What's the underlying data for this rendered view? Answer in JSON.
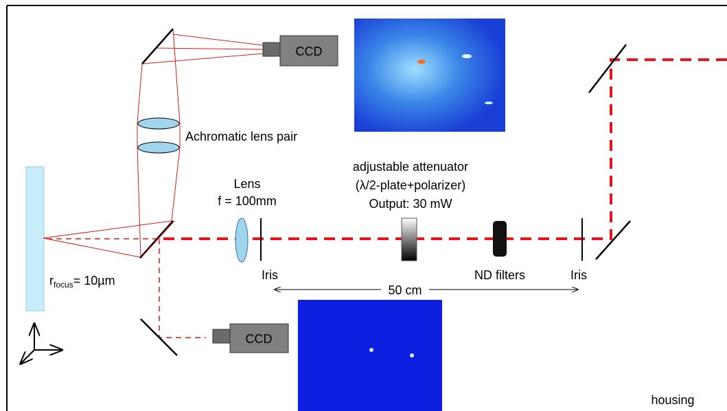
{
  "labels": {
    "ccd_top": "CCD",
    "ccd_bottom": "CCD",
    "lens_pair": "Achromatic lens pair",
    "lens": "Lens",
    "lens_focal": "f = 100mm",
    "attenuator": [
      "adjustable attenuator",
      "(λ/2-plate+polarizer)",
      "Output: 30 mW"
    ],
    "iris_left": "Iris",
    "iris_right": "Iris",
    "distance": "50 cm",
    "nd_filters": "ND filters",
    "housing": "housing",
    "focus": {
      "symbol": "r",
      "subscript": "focus",
      "value": "= 10µm"
    }
  }
}
